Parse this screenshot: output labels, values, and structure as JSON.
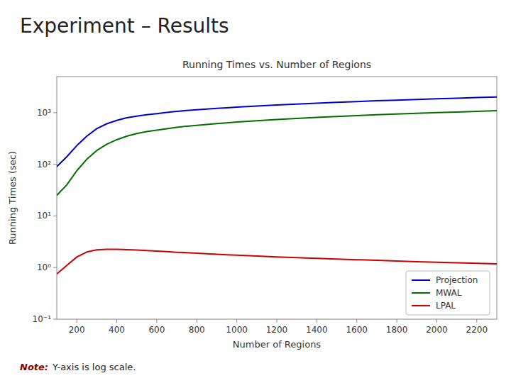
{
  "chart_data": {
    "type": "line",
    "title": "Experiment – Results",
    "subtitle": "Running Times vs. Number of Regions",
    "x_label": "Number of Regions",
    "y_label": "Running Times (sec)",
    "annotations": [
      {
        "text": "Note:",
        "color": "#8B0000"
      },
      {
        "text": "Y-axis is log scale."
      }
    ],
    "x": [
      100,
      150,
      200,
      250,
      300,
      350,
      400,
      450,
      500,
      550,
      600,
      650,
      700,
      750,
      800,
      850,
      900,
      950,
      1000,
      1100,
      1200,
      1300,
      1400,
      1500,
      1600,
      1700,
      1800,
      1900,
      2000,
      2100,
      2200,
      2300
    ],
    "series": [
      {
        "name": "Projection",
        "color": "#0000CC",
        "values": [
          90,
          140,
          230,
          350,
          490,
          610,
          710,
          800,
          860,
          910,
          960,
          1010,
          1060,
          1100,
          1140,
          1175,
          1210,
          1245,
          1280,
          1350,
          1410,
          1470,
          1530,
          1590,
          1640,
          1700,
          1750,
          1805,
          1860,
          1910,
          1960,
          2020
        ]
      },
      {
        "name": "MWAL",
        "color": "#007000",
        "values": [
          25,
          40,
          75,
          125,
          185,
          245,
          300,
          350,
          395,
          430,
          460,
          490,
          520,
          548,
          570,
          593,
          615,
          637,
          658,
          700,
          738,
          775,
          810,
          845,
          878,
          910,
          940,
          970,
          1000,
          1030,
          1060,
          1095
        ]
      },
      {
        "name": "LPAL",
        "color": "#CC0000",
        "values": [
          0.75,
          1.1,
          1.6,
          2.0,
          2.2,
          2.25,
          2.25,
          2.22,
          2.18,
          2.13,
          2.08,
          2.03,
          1.98,
          1.94,
          1.89,
          1.85,
          1.81,
          1.77,
          1.74,
          1.67,
          1.61,
          1.56,
          1.51,
          1.46,
          1.42,
          1.38,
          1.34,
          1.3,
          1.27,
          1.24,
          1.21,
          1.18
        ]
      }
    ],
    "xlim": [
      100,
      2300
    ],
    "xticks": [
      200,
      400,
      600,
      800,
      1000,
      1200,
      1400,
      1600,
      1800,
      2000,
      2200
    ],
    "ylim": [
      0.1,
      5000
    ],
    "yticks": [
      {
        "value": 0.1,
        "label": "10⁻¹"
      },
      {
        "value": 1,
        "label": "10⁰"
      },
      {
        "value": 10,
        "label": "10¹"
      },
      {
        "value": 100,
        "label": "10²"
      },
      {
        "value": 1000,
        "label": "10³"
      }
    ],
    "log": "y",
    "grid": false,
    "legend": "lower right"
  }
}
